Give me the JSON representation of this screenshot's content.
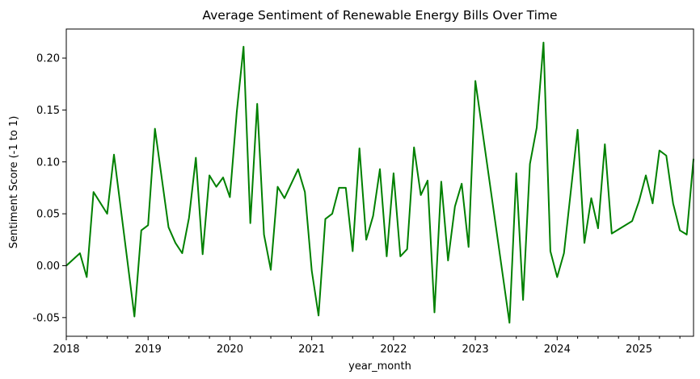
{
  "chart_data": {
    "type": "line",
    "title": "Average Sentiment of Renewable Energy Bills Over Time",
    "xlabel": "year_month",
    "ylabel": "Sentiment Score (-1 to 1)",
    "ylim": [
      -0.068,
      0.228
    ],
    "xlim": [
      "2018-01",
      "2025-09"
    ],
    "grid": false,
    "legend": "none",
    "line_color": "#008000",
    "x_ticks": [
      "2018",
      "2019",
      "2020",
      "2021",
      "2022",
      "2023",
      "2024",
      "2025"
    ],
    "y_ticks": [
      "-0.05",
      "0.00",
      "0.05",
      "0.10",
      "0.15",
      "0.20"
    ],
    "y_tick_values": [
      -0.05,
      0.0,
      0.05,
      0.1,
      0.15,
      0.2
    ],
    "series": [
      {
        "points": [
          [
            "2018-01",
            0.0
          ],
          [
            "2018-03",
            0.012
          ],
          [
            "2018-04",
            -0.011
          ],
          [
            "2018-05",
            0.071
          ],
          [
            "2018-07",
            0.05
          ],
          [
            "2018-08",
            0.107
          ],
          [
            "2018-11",
            -0.049
          ],
          [
            "2018-12",
            0.034
          ],
          [
            "2019-01",
            0.039
          ],
          [
            "2019-02",
            0.132
          ],
          [
            "2019-04",
            0.037
          ],
          [
            "2019-05",
            0.022
          ],
          [
            "2019-06",
            0.012
          ],
          [
            "2019-07",
            0.046
          ],
          [
            "2019-08",
            0.104
          ],
          [
            "2019-09",
            0.011
          ],
          [
            "2019-10",
            0.087
          ],
          [
            "2019-11",
            0.076
          ],
          [
            "2019-12",
            0.085
          ],
          [
            "2020-01",
            0.066
          ],
          [
            "2020-02",
            0.148
          ],
          [
            "2020-03",
            0.211
          ],
          [
            "2020-04",
            0.041
          ],
          [
            "2020-05",
            0.156
          ],
          [
            "2020-06",
            0.03
          ],
          [
            "2020-07",
            -0.004
          ],
          [
            "2020-08",
            0.076
          ],
          [
            "2020-09",
            0.065
          ],
          [
            "2020-11",
            0.093
          ],
          [
            "2020-12",
            0.071
          ],
          [
            "2021-01",
            -0.005
          ],
          [
            "2021-02",
            -0.048
          ],
          [
            "2021-03",
            0.045
          ],
          [
            "2021-04",
            0.05
          ],
          [
            "2021-05",
            0.075
          ],
          [
            "2021-06",
            0.075
          ],
          [
            "2021-07",
            0.014
          ],
          [
            "2021-08",
            0.113
          ],
          [
            "2021-09",
            0.025
          ],
          [
            "2021-10",
            0.048
          ],
          [
            "2021-11",
            0.093
          ],
          [
            "2021-12",
            0.009
          ],
          [
            "2022-01",
            0.089
          ],
          [
            "2022-02",
            0.009
          ],
          [
            "2022-03",
            0.016
          ],
          [
            "2022-04",
            0.114
          ],
          [
            "2022-05",
            0.068
          ],
          [
            "2022-06",
            0.082
          ],
          [
            "2022-07",
            -0.045
          ],
          [
            "2022-08",
            0.081
          ],
          [
            "2022-09",
            0.005
          ],
          [
            "2022-10",
            0.057
          ],
          [
            "2022-11",
            0.079
          ],
          [
            "2022-12",
            0.018
          ],
          [
            "2023-01",
            0.178
          ],
          [
            "2023-06",
            -0.055
          ],
          [
            "2023-07",
            0.089
          ],
          [
            "2023-08",
            -0.033
          ],
          [
            "2023-09",
            0.098
          ],
          [
            "2023-10",
            0.133
          ],
          [
            "2023-11",
            0.215
          ],
          [
            "2023-12",
            0.014
          ],
          [
            "2024-01",
            -0.011
          ],
          [
            "2024-02",
            0.012
          ],
          [
            "2024-04",
            0.131
          ],
          [
            "2024-05",
            0.022
          ],
          [
            "2024-06",
            0.065
          ],
          [
            "2024-07",
            0.036
          ],
          [
            "2024-08",
            0.117
          ],
          [
            "2024-09",
            0.031
          ],
          [
            "2024-12",
            0.043
          ],
          [
            "2025-01",
            0.062
          ],
          [
            "2025-02",
            0.087
          ],
          [
            "2025-03",
            0.06
          ],
          [
            "2025-04",
            0.111
          ],
          [
            "2025-05",
            0.106
          ],
          [
            "2025-06",
            0.06
          ],
          [
            "2025-07",
            0.034
          ],
          [
            "2025-08",
            0.03
          ],
          [
            "2025-09",
            0.103
          ]
        ]
      }
    ]
  }
}
